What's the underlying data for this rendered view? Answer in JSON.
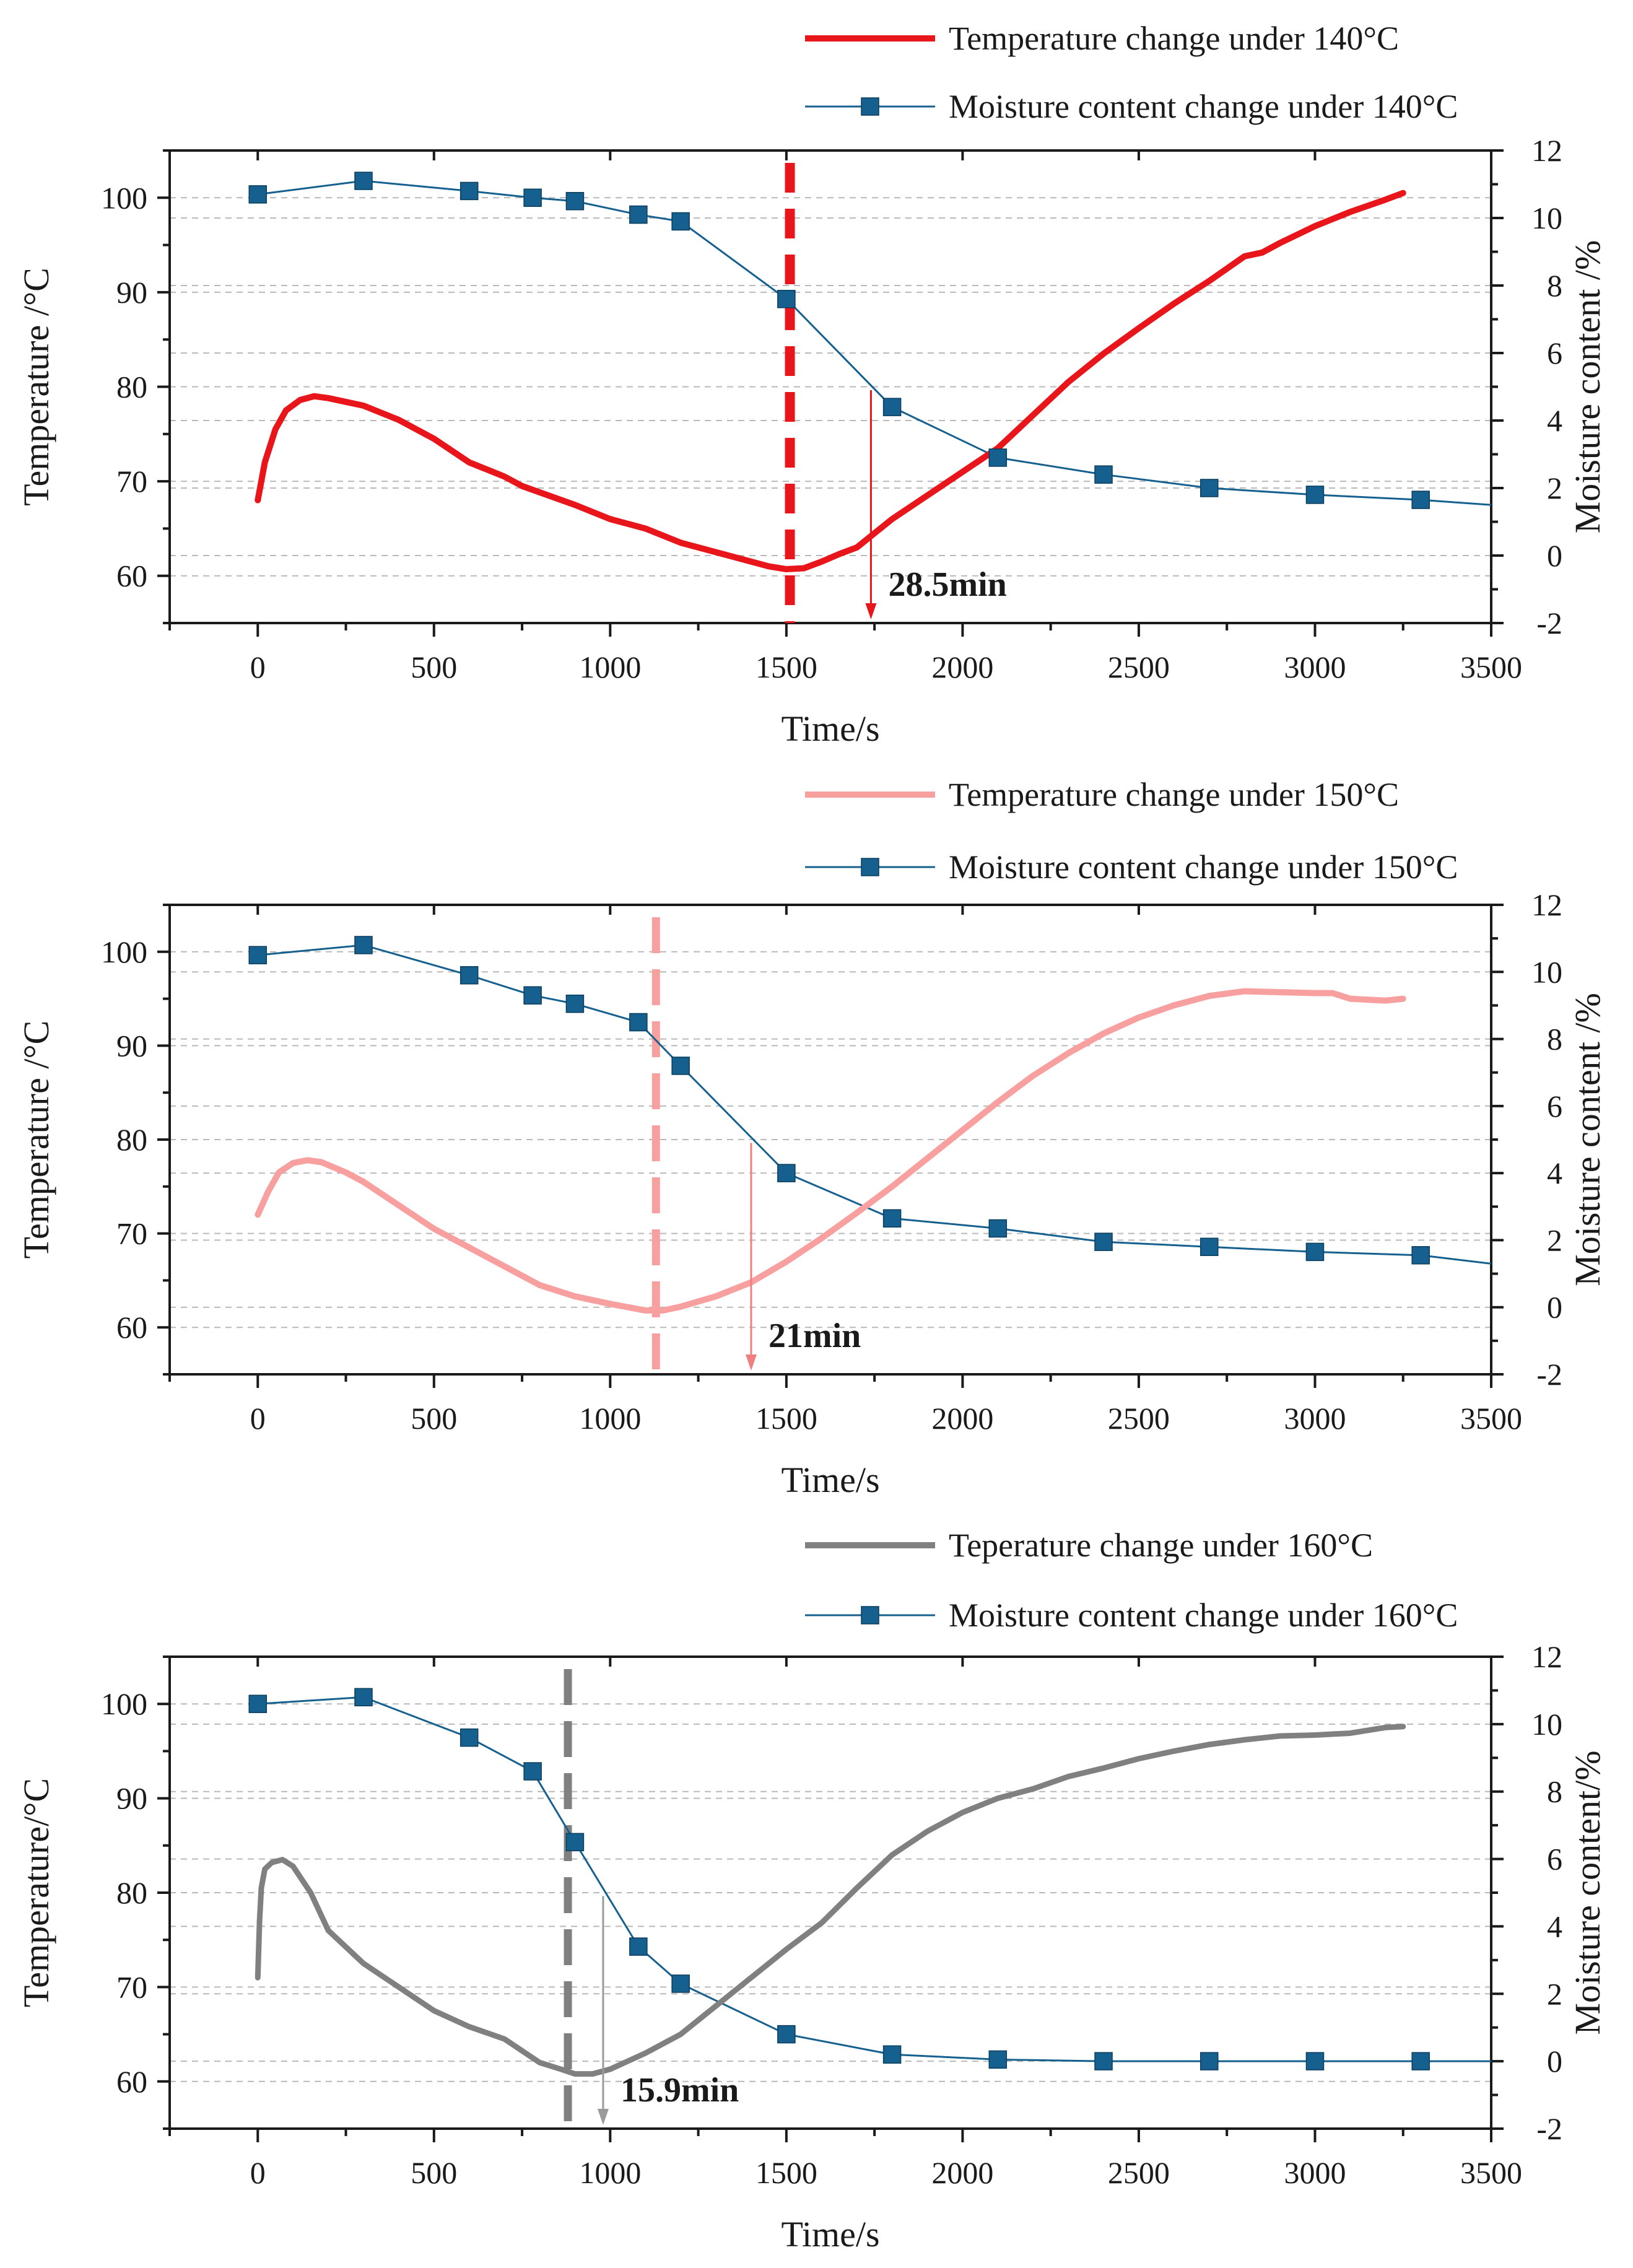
{
  "chart_data": [
    {
      "type": "line",
      "panel": "top",
      "xlabel": "Time/s",
      "ylabel_left": "Temperature /°C",
      "ylabel_right": "Moisture content /%",
      "xlim": [
        -250,
        3500
      ],
      "ylim_left": [
        55,
        105
      ],
      "ylim_right": [
        -2,
        12
      ],
      "x_ticks": [
        0,
        500,
        1000,
        1500,
        2000,
        2500,
        3000,
        3500
      ],
      "y_left_ticks": [
        60,
        70,
        80,
        90,
        100
      ],
      "y_right_ticks": [
        -2,
        0,
        2,
        4,
        6,
        8,
        10,
        12
      ],
      "legend": [
        {
          "label": "Temperature change under 140°C",
          "kind": "line"
        },
        {
          "label": "Moisture content change under 140°C",
          "kind": "line-square"
        }
      ],
      "temperature_color": "#e8151b",
      "moisture_color": "#15608e",
      "temperature": {
        "x": [
          0,
          20,
          50,
          80,
          120,
          160,
          200,
          300,
          400,
          500,
          600,
          700,
          750,
          900,
          1000,
          1100,
          1200,
          1300,
          1400,
          1450,
          1500,
          1550,
          1600,
          1650,
          1700,
          1750,
          1800,
          1900,
          2000,
          2100,
          2200,
          2300,
          2400,
          2500,
          2600,
          2700,
          2800,
          2850,
          2900,
          3000,
          3100,
          3200,
          3250
        ],
        "y": [
          68,
          72,
          75.5,
          77.5,
          78.6,
          79,
          78.8,
          78,
          76.5,
          74.5,
          72,
          70.5,
          69.5,
          67.5,
          66,
          65,
          63.5,
          62.5,
          61.5,
          61,
          60.7,
          60.8,
          61.5,
          62.3,
          63,
          64.5,
          66,
          68.5,
          71,
          73.5,
          77,
          80.5,
          83.5,
          86.2,
          88.8,
          91.2,
          93.8,
          94.2,
          95.2,
          97,
          98.5,
          99.8,
          100.5
        ]
      },
      "moisture": {
        "x": [
          0,
          300,
          600,
          780,
          900,
          1080,
          1200,
          1500,
          1800,
          2100,
          2400,
          2700,
          3000,
          3300,
          3500
        ],
        "y": [
          10.7,
          11.1,
          10.8,
          10.6,
          10.5,
          10.1,
          9.9,
          7.6,
          4.4,
          2.9,
          2.4,
          2.0,
          1.8,
          1.65,
          1.5
        ],
        "markers": [
          true,
          true,
          true,
          true,
          true,
          true,
          true,
          true,
          true,
          true,
          true,
          true,
          true,
          true,
          false
        ]
      },
      "transition_x": 1510,
      "annotation": {
        "x": 1740,
        "moisture_from": 4.9,
        "label": "28.5min"
      }
    },
    {
      "type": "line",
      "panel": "middle",
      "xlabel": "Time/s",
      "ylabel_left": "Temperature /°C",
      "ylabel_right": "Moisture content /%",
      "xlim": [
        -250,
        3500
      ],
      "ylim_left": [
        55,
        105
      ],
      "ylim_right": [
        -2,
        12
      ],
      "x_ticks": [
        0,
        500,
        1000,
        1500,
        2000,
        2500,
        3000,
        3500
      ],
      "y_left_ticks": [
        60,
        70,
        80,
        90,
        100
      ],
      "y_right_ticks": [
        -2,
        0,
        2,
        4,
        6,
        8,
        10,
        12
      ],
      "legend": [
        {
          "label": "Temperature change under 150°C",
          "kind": "line"
        },
        {
          "label": "Moisture content change under 150°C",
          "kind": "line-square"
        }
      ],
      "temperature_color": "#f8a0a0",
      "moisture_color": "#15608e",
      "temperature": {
        "x": [
          0,
          30,
          60,
          100,
          140,
          180,
          250,
          300,
          400,
          500,
          600,
          700,
          800,
          900,
          1000,
          1100,
          1150,
          1200,
          1300,
          1400,
          1500,
          1600,
          1700,
          1800,
          1900,
          2000,
          2100,
          2200,
          2300,
          2400,
          2500,
          2600,
          2700,
          2800,
          2900,
          3000,
          3050,
          3100,
          3200,
          3250
        ],
        "y": [
          72,
          74.5,
          76.5,
          77.5,
          77.8,
          77.6,
          76.5,
          75.5,
          73,
          70.5,
          68.5,
          66.5,
          64.5,
          63.3,
          62.5,
          61.8,
          61.8,
          62.2,
          63.3,
          64.8,
          67,
          69.5,
          72.2,
          75,
          78,
          81,
          84,
          86.8,
          89.2,
          91.3,
          93,
          94.3,
          95.3,
          95.8,
          95.7,
          95.6,
          95.6,
          95,
          94.8,
          95
        ],
        "x_end_note": "temperature line"
      },
      "moisture": {
        "x": [
          0,
          300,
          600,
          780,
          900,
          1080,
          1200,
          1500,
          1800,
          2100,
          2400,
          2700,
          3000,
          3300,
          3500
        ],
        "y": [
          10.5,
          10.8,
          9.9,
          9.3,
          9.05,
          8.5,
          7.2,
          4.0,
          2.65,
          2.35,
          1.95,
          1.8,
          1.65,
          1.55,
          1.3
        ],
        "markers": [
          true,
          true,
          true,
          true,
          true,
          true,
          true,
          true,
          true,
          true,
          true,
          true,
          true,
          true,
          false
        ]
      },
      "transition_x": 1130,
      "annotation": {
        "x": 1400,
        "moisture_from": 4.9,
        "label": "21min"
      }
    },
    {
      "type": "line",
      "panel": "bottom",
      "xlabel": "Time/s",
      "ylabel_left": "Temperature/°C",
      "ylabel_right": "Moisture content/%",
      "xlim": [
        -250,
        3500
      ],
      "ylim_left": [
        55,
        105
      ],
      "ylim_right": [
        -2,
        12
      ],
      "x_ticks": [
        0,
        500,
        1000,
        1500,
        2000,
        2500,
        3000,
        3500
      ],
      "y_left_ticks": [
        60,
        70,
        80,
        90,
        100
      ],
      "y_right_ticks": [
        -2,
        0,
        2,
        4,
        6,
        8,
        10,
        12
      ],
      "legend": [
        {
          "label": "Teperature change under 160°C",
          "kind": "line"
        },
        {
          "label": "Moisture content change under 160°C",
          "kind": "line-square"
        }
      ],
      "temperature_color": "#808080",
      "moisture_color": "#15608e",
      "temperature": {
        "x": [
          0,
          5,
          10,
          20,
          40,
          70,
          100,
          150,
          200,
          300,
          400,
          500,
          600,
          700,
          760,
          800,
          860,
          900,
          950,
          1000,
          1100,
          1200,
          1300,
          1400,
          1500,
          1600,
          1700,
          1800,
          1900,
          2000,
          2100,
          2200,
          2300,
          2400,
          2500,
          2600,
          2700,
          2800,
          2900,
          3000,
          3100,
          3200,
          3250
        ],
        "y": [
          71,
          77,
          80.5,
          82.5,
          83.2,
          83.5,
          82.8,
          80,
          76,
          72.5,
          70,
          67.5,
          65.8,
          64.5,
          63,
          62,
          61.3,
          60.8,
          60.8,
          61.3,
          63,
          65,
          68,
          71,
          74,
          76.8,
          80.5,
          84,
          86.5,
          88.5,
          90,
          91,
          92.3,
          93.2,
          94.2,
          95,
          95.7,
          96.2,
          96.6,
          96.7,
          96.9,
          97.5,
          97.6
        ]
      },
      "moisture": {
        "x": [
          0,
          300,
          600,
          780,
          900,
          1080,
          1200,
          1500,
          1800,
          2100,
          2400,
          2700,
          3000,
          3300,
          3500
        ],
        "y": [
          10.6,
          10.8,
          9.6,
          8.6,
          6.5,
          3.4,
          2.3,
          0.8,
          0.2,
          0.05,
          0.0,
          0.0,
          0.0,
          0.0,
          0.0
        ],
        "markers": [
          true,
          true,
          true,
          true,
          true,
          true,
          true,
          true,
          true,
          true,
          true,
          true,
          true,
          true,
          false
        ]
      },
      "transition_x": 880,
      "annotation": {
        "x": 980,
        "moisture_from": 4.9,
        "label": "15.9min"
      }
    }
  ]
}
